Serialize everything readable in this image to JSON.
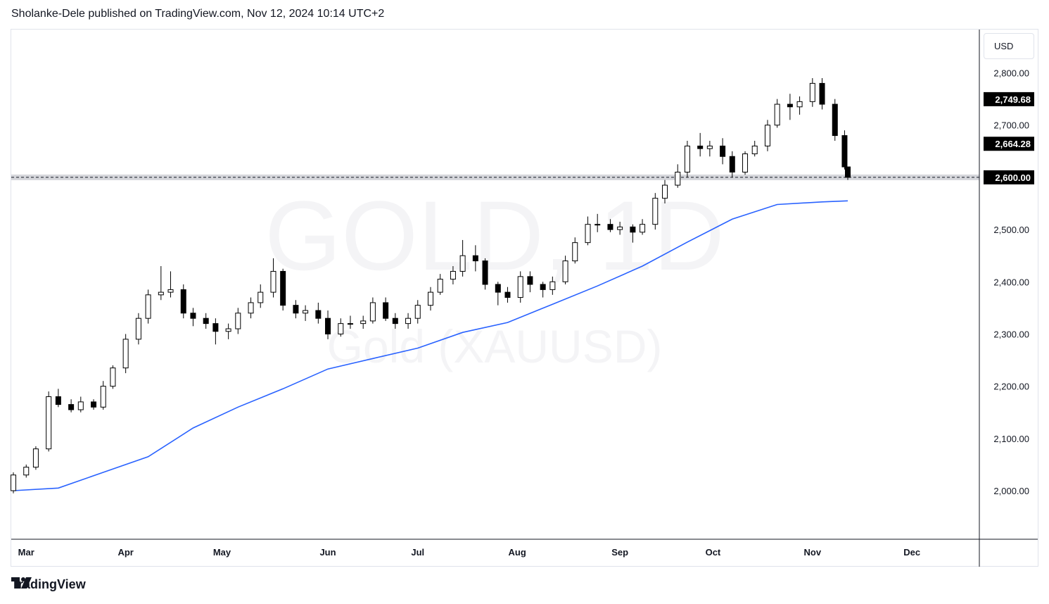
{
  "header": {
    "publish_line": "Sholanke-Dele published on TradingView.com, Nov 12, 2024 10:14 UTC+2"
  },
  "currency": "USD",
  "watermark": {
    "symbol": "GOLD, 1D",
    "name": "Gold (XAUUSD)"
  },
  "footer": {
    "brand": "TradingView"
  },
  "colors": {
    "up_body": "#ffffff",
    "down_body": "#000000",
    "wick": "#000000",
    "ma_line": "#2962ff",
    "level_line": "#b2b5be",
    "grid": "#e0e3eb",
    "axis_text": "#131722",
    "tag_bg": "#000000",
    "tag_text": "#ffffff"
  },
  "chart_data": {
    "type": "candlestick",
    "symbol": "GOLD",
    "timeframe": "1D",
    "ylim": [
      1920,
      2895
    ],
    "y_ticks": [
      "2,000.00",
      "2,100.00",
      "2,200.00",
      "2,300.00",
      "2,400.00",
      "2,500.00",
      "2,700.00",
      "2,800.00"
    ],
    "y_tick_values": [
      2000,
      2100,
      2200,
      2300,
      2400,
      2500,
      2700,
      2800
    ],
    "x_ticks": [
      "Mar",
      "Apr",
      "May",
      "Jun",
      "Jul",
      "Aug",
      "Sep",
      "Oct",
      "Nov",
      "Dec"
    ],
    "x_tick_dates": [
      "2024-03-01",
      "2024-04-01",
      "2024-05-01",
      "2024-06-03",
      "2024-07-01",
      "2024-08-01",
      "2024-09-02",
      "2024-10-01",
      "2024-11-01",
      "2024-12-02"
    ],
    "price_tags": [
      {
        "label": "2,749.68",
        "value": 2749.68
      },
      {
        "label": "2,664.28",
        "value": 2664.28
      },
      {
        "label": "2,600.00",
        "value": 2600.0
      }
    ],
    "horizontal_level": 2600,
    "series": [
      {
        "name": "",
        "type": "candles",
        "dates": [
          "2024-02-26",
          "2024-03-01",
          "2024-03-04",
          "2024-03-08",
          "2024-03-11",
          "2024-03-15",
          "2024-03-18",
          "2024-03-22",
          "2024-03-25",
          "2024-03-28",
          "2024-04-01",
          "2024-04-05",
          "2024-04-08",
          "2024-04-12",
          "2024-04-15",
          "2024-04-19",
          "2024-04-22",
          "2024-04-26",
          "2024-04-29",
          "2024-05-03",
          "2024-05-06",
          "2024-05-10",
          "2024-05-13",
          "2024-05-17",
          "2024-05-20",
          "2024-05-24",
          "2024-05-27",
          "2024-05-31",
          "2024-06-03",
          "2024-06-07",
          "2024-06-10",
          "2024-06-14",
          "2024-06-17",
          "2024-06-21",
          "2024-06-24",
          "2024-06-28",
          "2024-07-01",
          "2024-07-05",
          "2024-07-08",
          "2024-07-12",
          "2024-07-15",
          "2024-07-19",
          "2024-07-22",
          "2024-07-26",
          "2024-07-29",
          "2024-08-02",
          "2024-08-05",
          "2024-08-09",
          "2024-08-12",
          "2024-08-16",
          "2024-08-19",
          "2024-08-23",
          "2024-08-26",
          "2024-08-30",
          "2024-09-02",
          "2024-09-06",
          "2024-09-09",
          "2024-09-13",
          "2024-09-16",
          "2024-09-20",
          "2024-09-23",
          "2024-09-27",
          "2024-09-30",
          "2024-10-04",
          "2024-10-07",
          "2024-10-11",
          "2024-10-14",
          "2024-10-18",
          "2024-10-21",
          "2024-10-25",
          "2024-10-28",
          "2024-11-01",
          "2024-11-04",
          "2024-11-08",
          "2024-11-11",
          "2024-11-12"
        ],
        "open": [
          2000,
          2030,
          2045,
          2080,
          2180,
          2165,
          2155,
          2170,
          2160,
          2200,
          2235,
          2290,
          2330,
          2375,
          2380,
          2385,
          2340,
          2330,
          2320,
          2305,
          2310,
          2340,
          2360,
          2380,
          2420,
          2355,
          2340,
          2345,
          2330,
          2300,
          2320,
          2320,
          2325,
          2360,
          2330,
          2320,
          2330,
          2355,
          2380,
          2405,
          2420,
          2450,
          2440,
          2395,
          2380,
          2370,
          2410,
          2395,
          2385,
          2400,
          2440,
          2475,
          2510,
          2510,
          2500,
          2505,
          2495,
          2510,
          2560,
          2585,
          2610,
          2660,
          2655,
          2660,
          2640,
          2610,
          2645,
          2660,
          2700,
          2740,
          2735,
          2745,
          2780,
          2740,
          2680,
          2620
        ],
        "close": [
          2030,
          2045,
          2080,
          2180,
          2165,
          2155,
          2170,
          2160,
          2200,
          2235,
          2290,
          2330,
          2375,
          2380,
          2385,
          2340,
          2330,
          2320,
          2305,
          2310,
          2340,
          2360,
          2380,
          2420,
          2355,
          2340,
          2345,
          2330,
          2300,
          2320,
          2320,
          2325,
          2360,
          2330,
          2320,
          2330,
          2355,
          2380,
          2405,
          2420,
          2450,
          2440,
          2395,
          2380,
          2370,
          2410,
          2395,
          2385,
          2400,
          2440,
          2475,
          2510,
          2510,
          2500,
          2505,
          2495,
          2510,
          2560,
          2585,
          2610,
          2660,
          2655,
          2660,
          2640,
          2610,
          2645,
          2660,
          2700,
          2740,
          2735,
          2745,
          2780,
          2740,
          2680,
          2620,
          2600
        ],
        "high": [
          2035,
          2050,
          2085,
          2190,
          2195,
          2175,
          2180,
          2175,
          2210,
          2240,
          2300,
          2340,
          2385,
          2430,
          2420,
          2395,
          2350,
          2340,
          2330,
          2320,
          2350,
          2370,
          2395,
          2445,
          2425,
          2365,
          2355,
          2360,
          2345,
          2330,
          2335,
          2335,
          2370,
          2370,
          2340,
          2340,
          2365,
          2390,
          2415,
          2430,
          2480,
          2470,
          2445,
          2400,
          2390,
          2420,
          2420,
          2400,
          2410,
          2450,
          2485,
          2525,
          2530,
          2520,
          2515,
          2510,
          2520,
          2570,
          2595,
          2625,
          2670,
          2685,
          2670,
          2675,
          2650,
          2650,
          2670,
          2710,
          2750,
          2760,
          2755,
          2790,
          2790,
          2750,
          2690,
          2615
        ],
        "low": [
          1995,
          2025,
          2040,
          2075,
          2160,
          2150,
          2150,
          2155,
          2155,
          2195,
          2225,
          2280,
          2320,
          2365,
          2370,
          2330,
          2315,
          2310,
          2280,
          2290,
          2300,
          2330,
          2350,
          2370,
          2345,
          2330,
          2325,
          2320,
          2290,
          2295,
          2310,
          2310,
          2320,
          2325,
          2310,
          2310,
          2320,
          2345,
          2375,
          2395,
          2410,
          2420,
          2385,
          2355,
          2360,
          2360,
          2380,
          2370,
          2375,
          2395,
          2435,
          2470,
          2495,
          2495,
          2490,
          2475,
          2490,
          2500,
          2550,
          2580,
          2600,
          2640,
          2640,
          2625,
          2600,
          2605,
          2640,
          2650,
          2695,
          2710,
          2720,
          2735,
          2730,
          2670,
          2615,
          2595
        ]
      },
      {
        "name": "",
        "type": "line",
        "dates": [
          "2024-02-26",
          "2024-03-11",
          "2024-03-25",
          "2024-04-08",
          "2024-04-22",
          "2024-05-06",
          "2024-05-20",
          "2024-06-03",
          "2024-06-17",
          "2024-07-01",
          "2024-07-15",
          "2024-07-29",
          "2024-08-12",
          "2024-08-26",
          "2024-09-09",
          "2024-09-23",
          "2024-10-07",
          "2024-10-21",
          "2024-11-04",
          "2024-11-12"
        ],
        "values": [
          2000,
          2005,
          2035,
          2065,
          2120,
          2160,
          2195,
          2233,
          2253,
          2273,
          2303,
          2322,
          2357,
          2392,
          2430,
          2476,
          2520,
          2548,
          2553,
          2555
        ]
      }
    ],
    "grid": false,
    "legend": "none"
  }
}
